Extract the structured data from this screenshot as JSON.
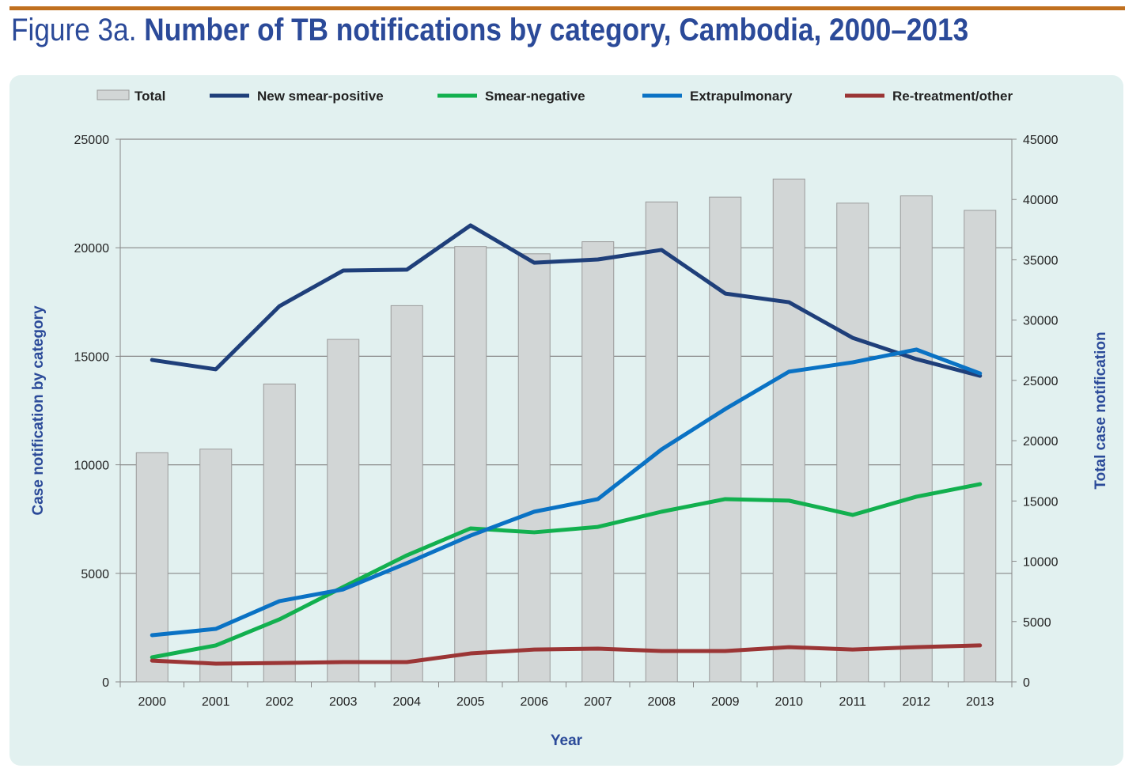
{
  "title_prefix": "Figure 3a.",
  "title_main": "Number of TB notifications by category, Cambodia, 2000–2013",
  "chart_data": {
    "type": "bar+line",
    "title": "Number of TB notifications by category, Cambodia, 2000–2013",
    "xlabel": "Year",
    "ylabel": "Case notification by category",
    "y2label": "Total  case notification",
    "ylim": [
      0,
      25000
    ],
    "y2lim": [
      0,
      45000
    ],
    "yticks": [
      0,
      5000,
      10000,
      15000,
      20000,
      25000
    ],
    "y2ticks": [
      0,
      5000,
      10000,
      15000,
      20000,
      25000,
      30000,
      35000,
      40000,
      45000
    ],
    "grid": true,
    "legend_position": "top",
    "categories": [
      "2000",
      "2001",
      "2002",
      "2003",
      "2004",
      "2005",
      "2006",
      "2007",
      "2008",
      "2009",
      "2010",
      "2011",
      "2012",
      "2013"
    ],
    "series": [
      {
        "name": "Total",
        "kind": "bar",
        "axis": "right",
        "color": "#d2d6d6",
        "values": [
          19000,
          19300,
          24700,
          28400,
          31200,
          36100,
          35500,
          36500,
          39800,
          40200,
          41700,
          39700,
          40300,
          39100
        ]
      },
      {
        "name": "New smear-positive",
        "kind": "line",
        "axis": "left",
        "color": "#1f3f7a",
        "values": [
          14830,
          14400,
          17310,
          18950,
          18990,
          21030,
          19310,
          19460,
          19900,
          17890,
          17490,
          15850,
          14870,
          14100
        ]
      },
      {
        "name": "Smear-negative",
        "kind": "line",
        "axis": "left",
        "color": "#12b04f",
        "values": [
          1130,
          1680,
          2880,
          4370,
          5830,
          7070,
          6890,
          7140,
          7840,
          8420,
          8350,
          7690,
          8530,
          9110
        ]
      },
      {
        "name": "Extrapulmonary",
        "kind": "line",
        "axis": "left",
        "color": "#0a72c4",
        "values": [
          2150,
          2440,
          3720,
          4260,
          5470,
          6740,
          7840,
          8420,
          10710,
          12570,
          14290,
          14720,
          15310,
          14210
        ]
      },
      {
        "name": "Re-treatment/other",
        "kind": "line",
        "axis": "left",
        "color": "#9b3535",
        "values": [
          980,
          840,
          870,
          910,
          910,
          1310,
          1490,
          1530,
          1420,
          1420,
          1600,
          1490,
          1600,
          1680
        ]
      }
    ]
  }
}
